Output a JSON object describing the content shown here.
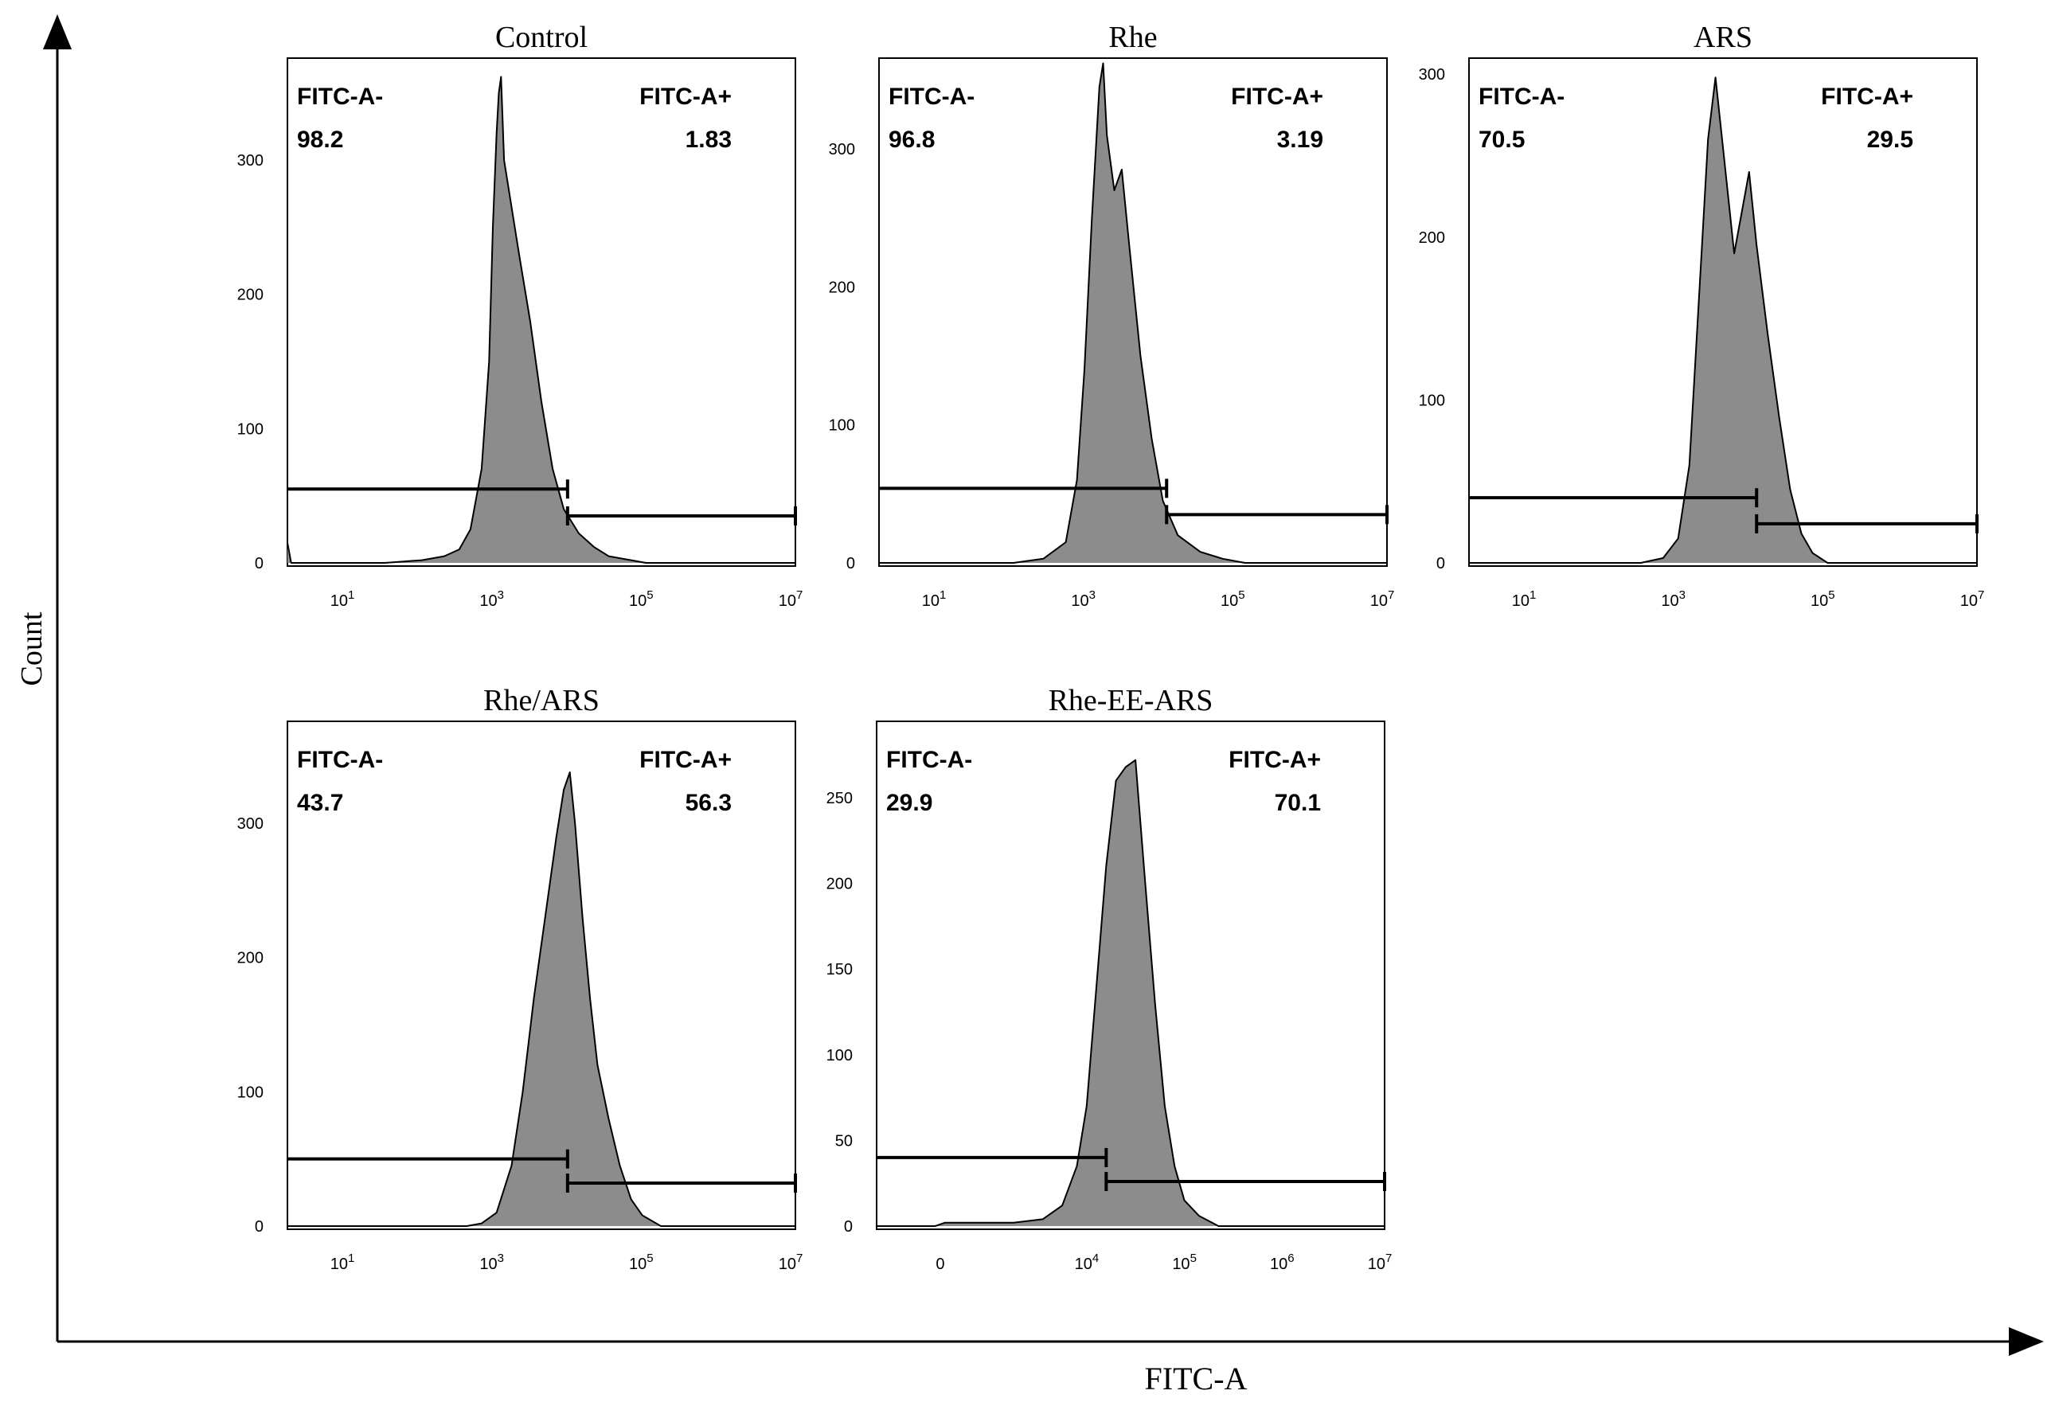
{
  "figure": {
    "y_axis_label": "Count",
    "x_axis_label": "FITC-A"
  },
  "chart_data": [
    {
      "type": "histogram",
      "title": "Control",
      "xlabel": "FITC-A",
      "ylabel": "Count",
      "x_scale": "log10",
      "xlim_log10": [
        0.2,
        7.0
      ],
      "ylim": [
        0,
        370
      ],
      "yticks": [
        0,
        100,
        200,
        300
      ],
      "xticks": [
        {
          "pos": 1,
          "base": "10",
          "exp": "1"
        },
        {
          "pos": 3,
          "base": "10",
          "exp": "3"
        },
        {
          "pos": 5,
          "base": "10",
          "exp": "5"
        },
        {
          "pos": 7,
          "base": "10",
          "exp": "7"
        }
      ],
      "gate_log10": 3.95,
      "gate_neg_y": 55,
      "gate_pos_y": 35,
      "negative_label": "FITC-A-",
      "negative_value": "98.2",
      "positive_label": "FITC-A+",
      "positive_value": "1.83",
      "curve_log10": [
        [
          0.2,
          15
        ],
        [
          0.25,
          0
        ],
        [
          1.5,
          0
        ],
        [
          2.0,
          2
        ],
        [
          2.3,
          5
        ],
        [
          2.5,
          10
        ],
        [
          2.65,
          25
        ],
        [
          2.8,
          70
        ],
        [
          2.9,
          150
        ],
        [
          2.95,
          250
        ],
        [
          3.0,
          320
        ],
        [
          3.03,
          350
        ],
        [
          3.06,
          362
        ],
        [
          3.1,
          300
        ],
        [
          3.2,
          265
        ],
        [
          3.3,
          230
        ],
        [
          3.45,
          180
        ],
        [
          3.6,
          120
        ],
        [
          3.75,
          70
        ],
        [
          3.9,
          40
        ],
        [
          4.1,
          22
        ],
        [
          4.3,
          12
        ],
        [
          4.5,
          5
        ],
        [
          4.8,
          2
        ],
        [
          5.0,
          0
        ],
        [
          7.0,
          0
        ]
      ]
    },
    {
      "type": "histogram",
      "title": "Rhe",
      "xlabel": "FITC-A",
      "ylabel": "Count",
      "x_scale": "log10",
      "xlim_log10": [
        0.2,
        7.0
      ],
      "ylim": [
        0,
        360
      ],
      "yticks": [
        0,
        100,
        200,
        300
      ],
      "xticks": [
        {
          "pos": 1,
          "base": "10",
          "exp": "1"
        },
        {
          "pos": 3,
          "base": "10",
          "exp": "3"
        },
        {
          "pos": 5,
          "base": "10",
          "exp": "5"
        },
        {
          "pos": 7,
          "base": "10",
          "exp": "7"
        }
      ],
      "gate_log10": 4.05,
      "gate_neg_y": 54,
      "gate_pos_y": 35,
      "negative_label": "FITC-A-",
      "negative_value": "96.8",
      "positive_label": "FITC-A+",
      "positive_value": "3.19",
      "curve_log10": [
        [
          0.2,
          0
        ],
        [
          2.0,
          0
        ],
        [
          2.4,
          3
        ],
        [
          2.7,
          15
        ],
        [
          2.85,
          60
        ],
        [
          2.95,
          140
        ],
        [
          3.05,
          250
        ],
        [
          3.15,
          345
        ],
        [
          3.2,
          362
        ],
        [
          3.25,
          310
        ],
        [
          3.35,
          270
        ],
        [
          3.45,
          285
        ],
        [
          3.55,
          230
        ],
        [
          3.7,
          150
        ],
        [
          3.85,
          90
        ],
        [
          4.0,
          45
        ],
        [
          4.2,
          20
        ],
        [
          4.5,
          8
        ],
        [
          4.8,
          3
        ],
        [
          5.1,
          0
        ],
        [
          7.0,
          0
        ]
      ]
    },
    {
      "type": "histogram",
      "title": "ARS",
      "xlabel": "FITC-A",
      "ylabel": "Count",
      "x_scale": "log10",
      "xlim_log10": [
        0.2,
        7.0
      ],
      "ylim": [
        0,
        305
      ],
      "yticks": [
        0,
        100,
        200,
        300
      ],
      "xticks": [
        {
          "pos": 1,
          "base": "10",
          "exp": "1"
        },
        {
          "pos": 3,
          "base": "10",
          "exp": "3"
        },
        {
          "pos": 5,
          "base": "10",
          "exp": "5"
        },
        {
          "pos": 7,
          "base": "10",
          "exp": "7"
        }
      ],
      "gate_log10": 4.05,
      "gate_neg_y": 40,
      "gate_pos_y": 24,
      "negative_label": "FITC-A-",
      "negative_value": "70.5",
      "positive_label": "FITC-A+",
      "positive_value": "29.5",
      "curve_log10": [
        [
          0.2,
          0
        ],
        [
          2.5,
          0
        ],
        [
          2.8,
          3
        ],
        [
          3.0,
          15
        ],
        [
          3.15,
          60
        ],
        [
          3.3,
          180
        ],
        [
          3.4,
          260
        ],
        [
          3.5,
          298
        ],
        [
          3.6,
          255
        ],
        [
          3.75,
          190
        ],
        [
          3.85,
          215
        ],
        [
          3.95,
          240
        ],
        [
          4.05,
          195
        ],
        [
          4.2,
          140
        ],
        [
          4.35,
          90
        ],
        [
          4.5,
          45
        ],
        [
          4.65,
          18
        ],
        [
          4.8,
          6
        ],
        [
          5.0,
          0
        ],
        [
          7.0,
          0
        ]
      ]
    },
    {
      "type": "histogram",
      "title": "Rhe/ARS",
      "xlabel": "FITC-A",
      "ylabel": "Count",
      "x_scale": "log10",
      "xlim_log10": [
        0.2,
        7.0
      ],
      "ylim": [
        0,
        370
      ],
      "yticks": [
        0,
        100,
        200,
        300
      ],
      "xticks": [
        {
          "pos": 1,
          "base": "10",
          "exp": "1"
        },
        {
          "pos": 3,
          "base": "10",
          "exp": "3"
        },
        {
          "pos": 5,
          "base": "10",
          "exp": "5"
        },
        {
          "pos": 7,
          "base": "10",
          "exp": "7"
        }
      ],
      "gate_log10": 3.95,
      "gate_neg_y": 50,
      "gate_pos_y": 32,
      "negative_label": "FITC-A-",
      "negative_value": "43.7",
      "positive_label": "FITC-A+",
      "positive_value": "56.3",
      "curve_log10": [
        [
          0.2,
          0
        ],
        [
          2.6,
          0
        ],
        [
          2.8,
          2
        ],
        [
          3.0,
          10
        ],
        [
          3.2,
          45
        ],
        [
          3.35,
          100
        ],
        [
          3.5,
          170
        ],
        [
          3.65,
          230
        ],
        [
          3.8,
          290
        ],
        [
          3.9,
          325
        ],
        [
          3.98,
          338
        ],
        [
          4.05,
          300
        ],
        [
          4.15,
          230
        ],
        [
          4.25,
          170
        ],
        [
          4.35,
          120
        ],
        [
          4.5,
          80
        ],
        [
          4.65,
          45
        ],
        [
          4.8,
          20
        ],
        [
          4.95,
          8
        ],
        [
          5.2,
          0
        ],
        [
          7.0,
          0
        ]
      ]
    },
    {
      "type": "histogram",
      "title": "Rhe-EE-ARS",
      "xlabel": "FITC-A",
      "ylabel": "Count",
      "x_scale": "log10",
      "xlim_log10": [
        1.8,
        7.0
      ],
      "ylim": [
        0,
        290
      ],
      "yticks": [
        0,
        50,
        100,
        150,
        200,
        250
      ],
      "xticks": [
        {
          "pos": 2.5,
          "base": "0",
          "exp": ""
        },
        {
          "pos": 4,
          "base": "10",
          "exp": "4"
        },
        {
          "pos": 5,
          "base": "10",
          "exp": "5"
        },
        {
          "pos": 6,
          "base": "10",
          "exp": "6"
        },
        {
          "pos": 7,
          "base": "10",
          "exp": "7"
        }
      ],
      "gate_log10": 4.15,
      "gate_neg_y": 40,
      "gate_pos_y": 26,
      "negative_label": "FITC-A-",
      "negative_value": "29.9",
      "positive_label": "FITC-A+",
      "positive_value": "70.1",
      "curve_log10": [
        [
          1.8,
          0
        ],
        [
          2.4,
          0
        ],
        [
          2.5,
          2
        ],
        [
          3.2,
          2
        ],
        [
          3.5,
          4
        ],
        [
          3.7,
          12
        ],
        [
          3.85,
          35
        ],
        [
          3.95,
          70
        ],
        [
          4.05,
          140
        ],
        [
          4.15,
          210
        ],
        [
          4.25,
          260
        ],
        [
          4.35,
          268
        ],
        [
          4.45,
          272
        ],
        [
          4.55,
          200
        ],
        [
          4.65,
          130
        ],
        [
          4.75,
          70
        ],
        [
          4.85,
          35
        ],
        [
          4.95,
          15
        ],
        [
          5.1,
          6
        ],
        [
          5.3,
          0
        ],
        [
          7.0,
          0
        ]
      ]
    }
  ]
}
